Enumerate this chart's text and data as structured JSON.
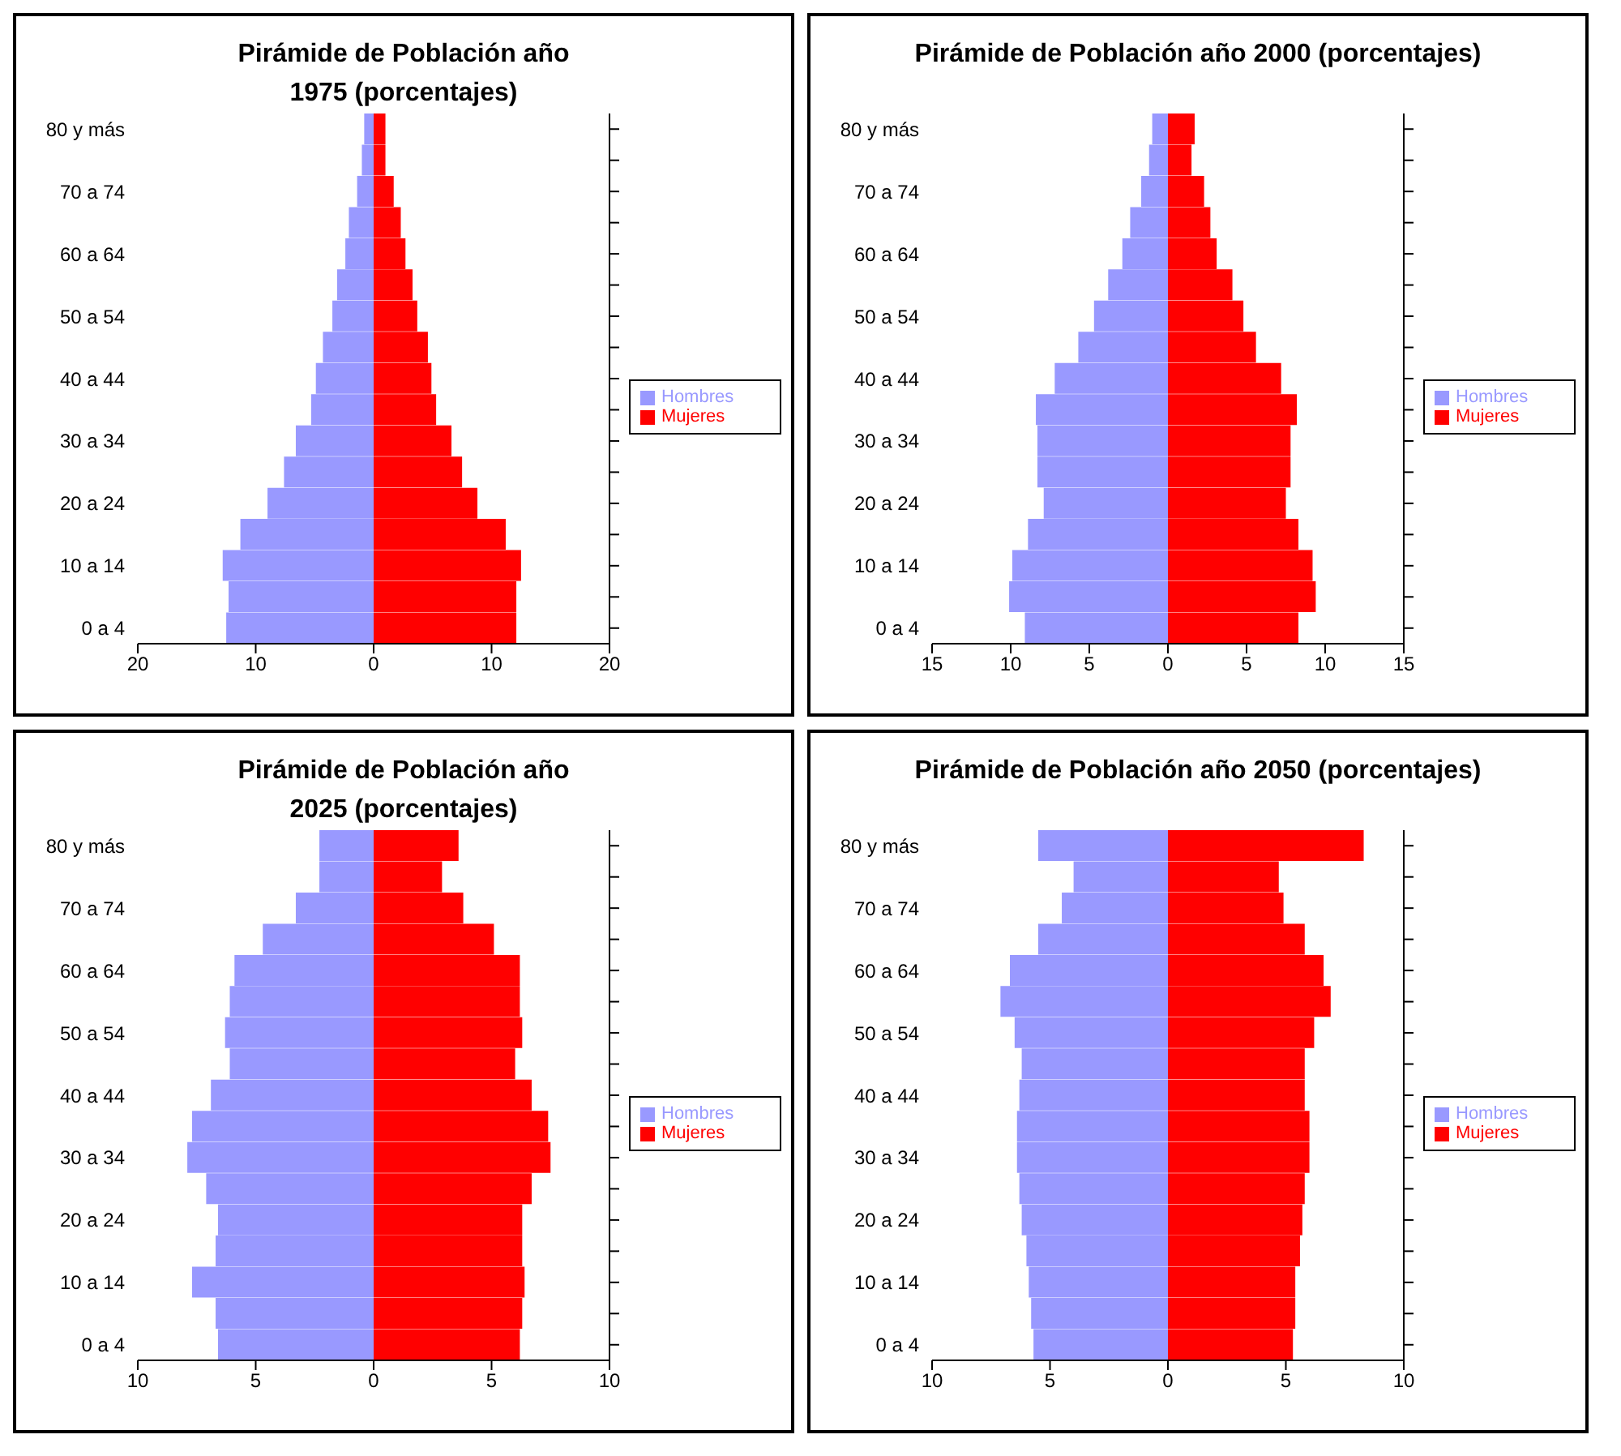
{
  "chart_data": [
    {
      "type": "bar",
      "orientation": "horizontal",
      "stacked": true,
      "title": "Pirámide de Población año 1975 (porcentajes)",
      "legend": "right",
      "categories": [
        "80 y más",
        null,
        "70 a 74",
        null,
        "60 a 64",
        null,
        "50 a 54",
        null,
        "40 a 44",
        null,
        "30 a 34",
        null,
        "20 a 24",
        null,
        "10 a 14",
        null,
        "0 a 4"
      ],
      "xlim": [
        -20,
        20
      ],
      "xticks": [
        {
          "value": -20,
          "label": "20"
        },
        {
          "value": -10,
          "label": "10"
        },
        0,
        10,
        20
      ],
      "series": [
        {
          "name": "Hombres",
          "color": "#9999ff",
          "values": [
            -0.8,
            -1.0,
            -1.4,
            -2.1,
            -2.4,
            -3.1,
            -3.5,
            -4.3,
            -4.9,
            -5.3,
            -6.6,
            -7.6,
            -9.0,
            -11.3,
            -12.8,
            -12.3,
            -12.5
          ]
        },
        {
          "name": "Mujeres",
          "color": "#ff0000",
          "values": [
            1.0,
            1.0,
            1.7,
            2.3,
            2.7,
            3.3,
            3.7,
            4.6,
            4.9,
            5.3,
            6.6,
            7.5,
            8.8,
            11.2,
            12.5,
            12.1,
            12.1
          ]
        }
      ]
    },
    {
      "type": "bar",
      "orientation": "horizontal",
      "stacked": true,
      "title": "Pirámide de Población año 2000 (porcentajes)",
      "legend": "right",
      "categories": [
        "80 y más",
        null,
        "70 a 74",
        null,
        "60 a 64",
        null,
        "50 a 54",
        null,
        "40 a 44",
        null,
        "30 a 34",
        null,
        "20 a 24",
        null,
        "10 a 14",
        null,
        "0 a 4"
      ],
      "xlim": [
        -15,
        15
      ],
      "xticks": [
        {
          "value": -15,
          "label": "15"
        },
        {
          "value": -10,
          "label": "10"
        },
        {
          "value": -5,
          "label": "5"
        },
        0,
        5,
        10,
        15
      ],
      "series": [
        {
          "name": "Hombres",
          "color": "#9999ff",
          "values": [
            -1.0,
            -1.2,
            -1.7,
            -2.4,
            -2.9,
            -3.8,
            -4.7,
            -5.7,
            -7.2,
            -8.4,
            -8.3,
            -8.3,
            -7.9,
            -8.9,
            -9.9,
            -10.1,
            -9.1
          ]
        },
        {
          "name": "Mujeres",
          "color": "#ff0000",
          "values": [
            1.7,
            1.5,
            2.3,
            2.7,
            3.1,
            4.1,
            4.8,
            5.6,
            7.2,
            8.2,
            7.8,
            7.8,
            7.5,
            8.3,
            9.2,
            9.4,
            8.3
          ]
        }
      ]
    },
    {
      "type": "bar",
      "orientation": "horizontal",
      "stacked": true,
      "title": "Pirámide de Población año 2025 (porcentajes)",
      "legend": "right",
      "categories": [
        "80 y más",
        null,
        "70 a 74",
        null,
        "60 a 64",
        null,
        "50 a 54",
        null,
        "40 a 44",
        null,
        "30 a 34",
        null,
        "20 a 24",
        null,
        "10 a 14",
        null,
        "0 a 4"
      ],
      "xlim": [
        -10,
        10
      ],
      "xticks": [
        {
          "value": -10,
          "label": "10"
        },
        {
          "value": -5,
          "label": "5"
        },
        0,
        5,
        10
      ],
      "series": [
        {
          "name": "Hombres",
          "color": "#9999ff",
          "values": [
            -2.3,
            -2.3,
            -3.3,
            -4.7,
            -5.9,
            -6.1,
            -6.3,
            -6.1,
            -6.9,
            -7.7,
            -7.9,
            -7.1,
            -6.6,
            -6.7,
            -7.7,
            -6.7,
            -6.6
          ]
        },
        {
          "name": "Mujeres",
          "color": "#ff0000",
          "values": [
            3.6,
            2.9,
            3.8,
            5.1,
            6.2,
            6.2,
            6.3,
            6.0,
            6.7,
            7.4,
            7.5,
            6.7,
            6.3,
            6.3,
            6.4,
            6.3,
            6.2
          ]
        }
      ]
    },
    {
      "type": "bar",
      "orientation": "horizontal",
      "stacked": true,
      "title": "Pirámide de Población año 2050 (porcentajes)",
      "legend": "right",
      "categories": [
        "80 y más",
        null,
        "70 a 74",
        null,
        "60 a 64",
        null,
        "50 a 54",
        null,
        "40 a 44",
        null,
        "30 a 34",
        null,
        "20 a 24",
        null,
        "10 a 14",
        null,
        "0 a 4"
      ],
      "xlim": [
        -10,
        10
      ],
      "xticks": [
        {
          "value": -10,
          "label": "10"
        },
        {
          "value": -5,
          "label": "5"
        },
        0,
        5,
        10
      ],
      "series": [
        {
          "name": "Hombres",
          "color": "#9999ff",
          "values": [
            -5.5,
            -4.0,
            -4.5,
            -5.5,
            -6.7,
            -7.1,
            -6.5,
            -6.2,
            -6.3,
            -6.4,
            -6.4,
            -6.3,
            -6.2,
            -6.0,
            -5.9,
            -5.8,
            -5.7
          ]
        },
        {
          "name": "Mujeres",
          "color": "#ff0000",
          "values": [
            8.3,
            4.7,
            4.9,
            5.8,
            6.6,
            6.9,
            6.2,
            5.8,
            5.8,
            6.0,
            6.0,
            5.8,
            5.7,
            5.6,
            5.4,
            5.4,
            5.3
          ]
        }
      ]
    }
  ]
}
